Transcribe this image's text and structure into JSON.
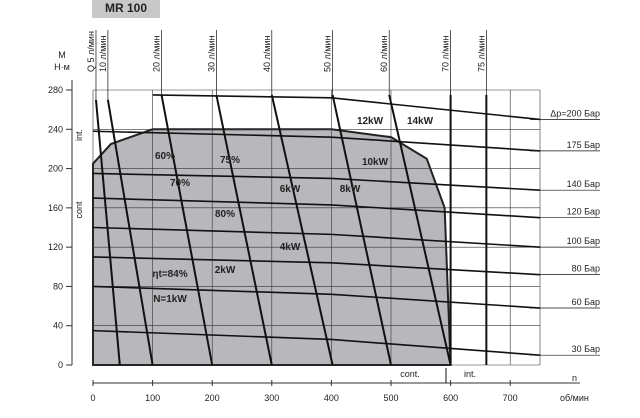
{
  "chart_data": {
    "type": "line",
    "title": "MR 100",
    "y_label": [
      "M",
      "Н·м"
    ],
    "x_label": [
      "n",
      "об/мин"
    ],
    "xlim": [
      0,
      750
    ],
    "ylim": [
      0,
      280
    ],
    "xticks": [
      0,
      100,
      200,
      300,
      400,
      500,
      600,
      700
    ],
    "yticks": [
      0,
      40,
      80,
      120,
      160,
      200,
      240,
      280
    ],
    "continuous_region": {
      "color": "#b8b8bc",
      "x": [
        0,
        0,
        30,
        100,
        400,
        500,
        560,
        590,
        600
      ],
      "values": [
        0,
        205,
        225,
        240,
        240,
        232,
        210,
        160,
        0
      ]
    },
    "pressure_lines": [
      {
        "name": "Δp=200 Бар",
        "x": [
          100,
          400,
          750
        ],
        "values": [
          275,
          272,
          250
        ]
      },
      {
        "name": "175 Бар",
        "x": [
          0,
          400,
          750
        ],
        "values": [
          238,
          232,
          218
        ]
      },
      {
        "name": "140 Бар",
        "x": [
          0,
          400,
          750
        ],
        "values": [
          195,
          190,
          178
        ]
      },
      {
        "name": "120 Бар",
        "x": [
          0,
          400,
          750
        ],
        "values": [
          170,
          163,
          150
        ]
      },
      {
        "name": "100 Бар",
        "x": [
          0,
          400,
          750
        ],
        "values": [
          140,
          133,
          120
        ]
      },
      {
        "name": "80 Бар",
        "x": [
          0,
          400,
          750
        ],
        "values": [
          110,
          104,
          92
        ]
      },
      {
        "name": "60 Бар",
        "x": [
          0,
          400,
          750
        ],
        "values": [
          80,
          72,
          58
        ]
      },
      {
        "name": "30 Бар",
        "x": [
          0,
          400,
          750
        ],
        "values": [
          35,
          26,
          10
        ]
      }
    ],
    "flow_lines": [
      {
        "name": "Q 5 л/мин",
        "x": [
          45,
          5
        ],
        "values": [
          0,
          270
        ]
      },
      {
        "name": "10 л/мин",
        "x": [
          100,
          25
        ],
        "values": [
          0,
          270
        ]
      },
      {
        "name": "20 л/мин",
        "x": [
          200,
          115
        ],
        "values": [
          0,
          275
        ]
      },
      {
        "name": "30 л/мин",
        "x": [
          300,
          207
        ],
        "values": [
          0,
          275
        ]
      },
      {
        "name": "40 л/мин",
        "x": [
          402,
          300
        ],
        "values": [
          0,
          275
        ]
      },
      {
        "name": "50 л/мин",
        "x": [
          500,
          402
        ],
        "values": [
          0,
          275
        ]
      },
      {
        "name": "60 л/мин",
        "x": [
          600,
          497
        ],
        "values": [
          0,
          275
        ]
      },
      {
        "name": "70 л/мин",
        "x": [
          600,
          600
        ],
        "values": [
          0,
          275
        ]
      },
      {
        "name": "75 л/мин",
        "x": [
          660,
          660
        ],
        "values": [
          0,
          275
        ]
      }
    ],
    "annotations": [
      "12kW",
      "14kW",
      "10kW",
      "8kW",
      "6kW",
      "4kW",
      "2kW",
      "N=1kW",
      "60%",
      "70%",
      "75%",
      "80%",
      "ηt=84%"
    ],
    "axis_notes": [
      "int.",
      "cont",
      "cont.",
      "int."
    ]
  }
}
